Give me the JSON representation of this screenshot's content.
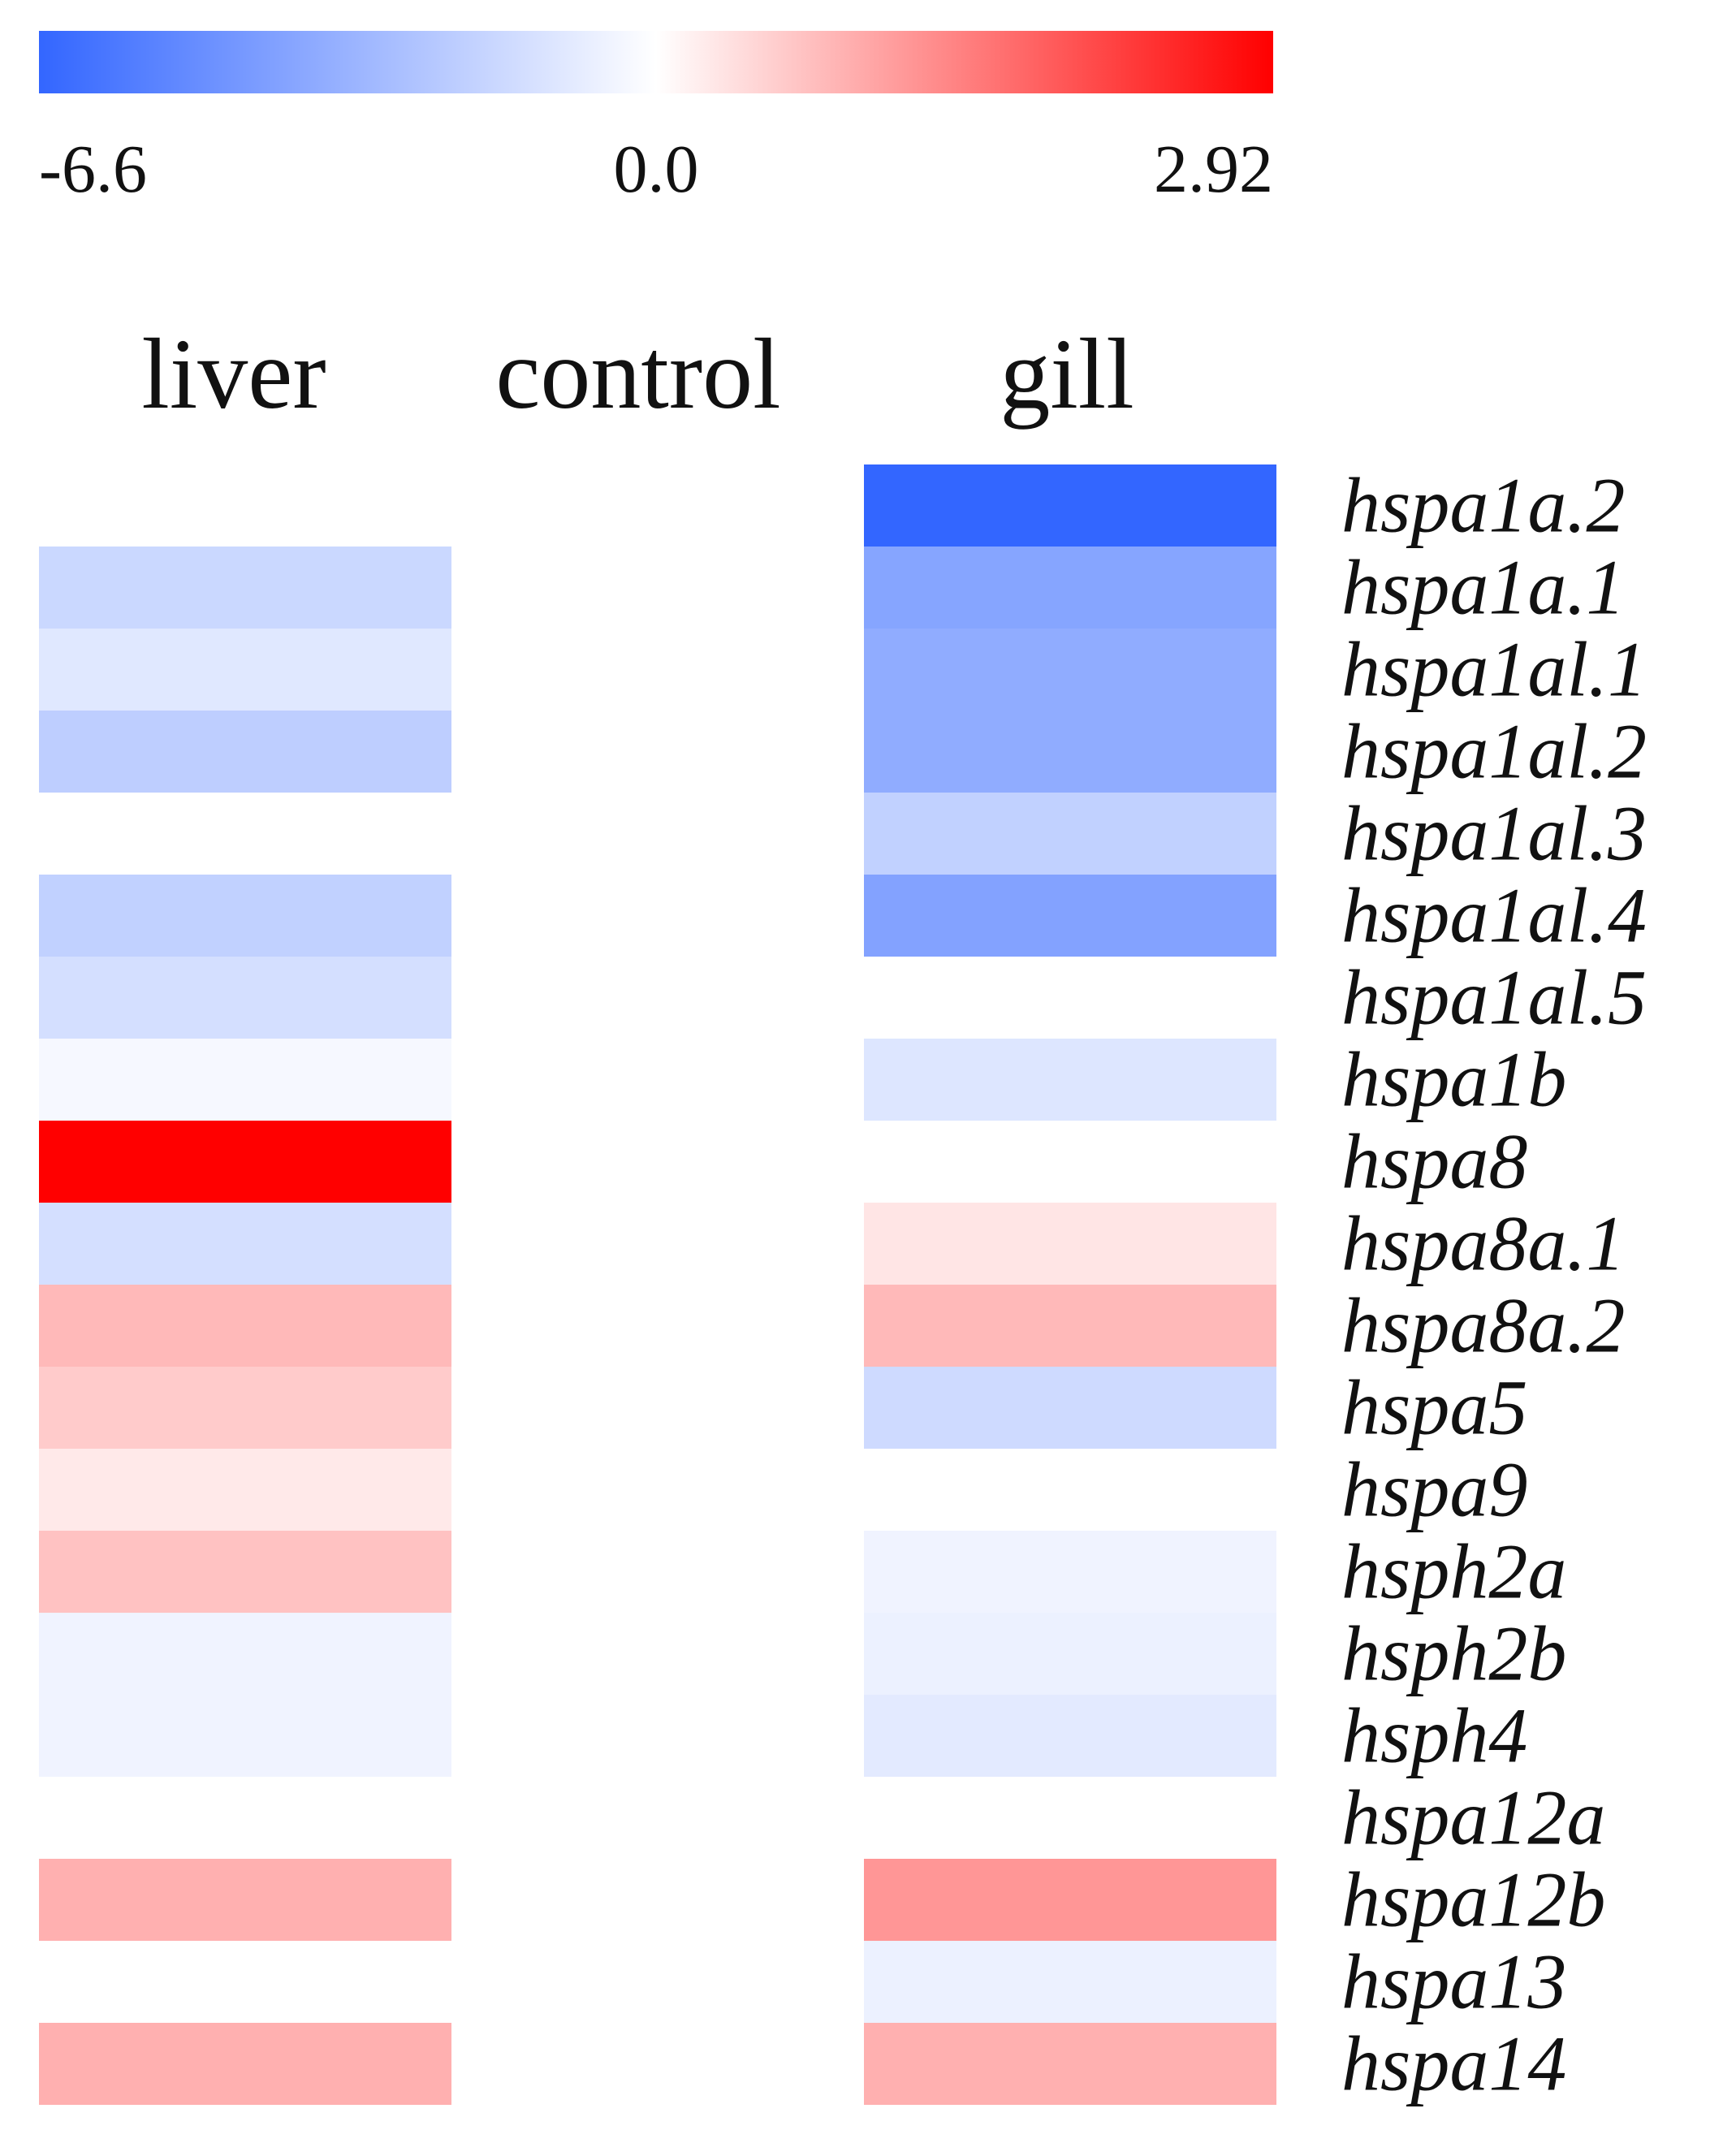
{
  "chart_data": {
    "type": "heatmap",
    "title": "",
    "columns": [
      "liver",
      "control",
      "gill"
    ],
    "rows": [
      "hspa1a.2",
      "hspa1a.1",
      "hspa1al.1",
      "hspa1al.2",
      "hspa1al.3",
      "hspa1al.4",
      "hspa1al.5",
      "hspa1b",
      "hspa8",
      "hspa8a.1",
      "hspa8a.2",
      "hspa5",
      "hspa9",
      "hsph2a",
      "hsph2b",
      "hsph4",
      "hspa12a",
      "hspa12b",
      "hspa13",
      "hspa14"
    ],
    "values": [
      [
        0.0,
        0.0,
        -6.6
      ],
      [
        -1.7,
        0.0,
        -3.9
      ],
      [
        -1.0,
        0.0,
        -3.6
      ],
      [
        -2.1,
        0.0,
        -3.6
      ],
      [
        0.0,
        0.0,
        -2.0
      ],
      [
        -2.0,
        0.0,
        -4.0
      ],
      [
        -1.4,
        0.0,
        0.0
      ],
      [
        -0.3,
        0.0,
        -1.1
      ],
      [
        2.92,
        0.0,
        0.0
      ],
      [
        -1.4,
        0.0,
        0.3
      ],
      [
        0.8,
        0.0,
        0.8
      ],
      [
        0.6,
        0.0,
        -1.6
      ],
      [
        0.25,
        0.0,
        0.0
      ],
      [
        0.7,
        0.0,
        -0.5
      ],
      [
        -0.5,
        0.0,
        -0.6
      ],
      [
        -0.5,
        0.0,
        -0.9
      ],
      [
        0.0,
        0.0,
        0.0
      ],
      [
        0.9,
        0.0,
        1.2
      ],
      [
        0.0,
        0.0,
        -0.6
      ],
      [
        0.9,
        0.0,
        0.9
      ]
    ],
    "color_scale": {
      "min": -6.6,
      "mid": 0.0,
      "max": 2.92,
      "tick_labels": [
        "-6.6",
        "0.0",
        "2.92"
      ],
      "min_color": "#3366ff",
      "mid_color": "#ffffff",
      "max_color": "#ff0000"
    },
    "legend_position": "top"
  }
}
